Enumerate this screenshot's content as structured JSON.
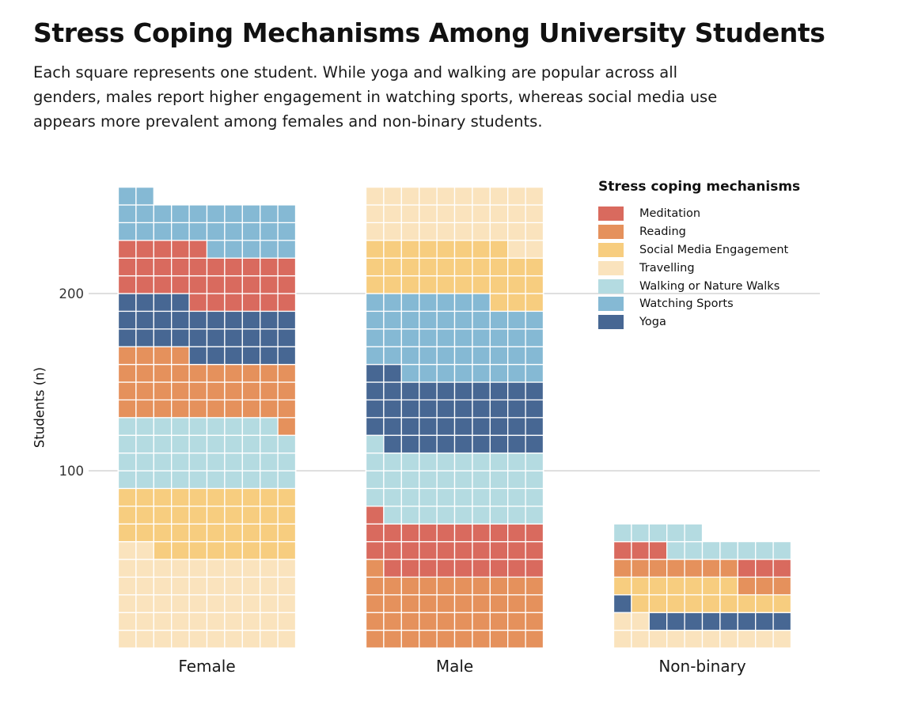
{
  "chart_data": {
    "type": "waffle",
    "title": "Stress Coping Mechanisms Among University Students",
    "subtitle": "Each square represents one student. While yoga and walking are popular across all genders, males report higher engagement in watching sports, whereas social media use appears more prevalent among females and non-binary students.",
    "ylabel": "Students (n)",
    "y_ticks": [
      100,
      200
    ],
    "ylim": [
      0,
      270
    ],
    "squares_per_row": 10,
    "grid": "horizontal-major",
    "legend": {
      "title": "Stress coping mechanisms",
      "position": "top-right"
    },
    "categories": [
      "Female",
      "Male",
      "Non-binary"
    ],
    "series": [
      {
        "name": "Travelling",
        "color": "#fae3bd",
        "values": [
          52,
          32,
          12
        ]
      },
      {
        "name": "Social Media Engagement",
        "color": "#f7cd7f",
        "values": [
          38,
          31,
          16
        ]
      },
      {
        "name": "Walking or Nature Walks",
        "color": "#b4dbe1",
        "values": [
          39,
          40,
          12
        ]
      },
      {
        "name": "Reading",
        "color": "#e5915c",
        "values": [
          35,
          41,
          10
        ]
      },
      {
        "name": "Yoga",
        "color": "#476793",
        "values": [
          30,
          41,
          9
        ]
      },
      {
        "name": "Meditation",
        "color": "#d96a5e",
        "values": [
          31,
          30,
          6
        ]
      },
      {
        "name": "Watching Sports",
        "color": "#85b9d4",
        "values": [
          27,
          45,
          0
        ]
      }
    ],
    "series_order_bottom_to_top": {
      "Female": [
        "Travelling",
        "Social Media Engagement",
        "Walking or Nature Walks",
        "Reading",
        "Yoga",
        "Meditation",
        "Watching Sports"
      ],
      "Male": [
        "Reading",
        "Meditation",
        "Walking or Nature Walks",
        "Yoga",
        "Watching Sports",
        "Social Media Engagement",
        "Travelling"
      ],
      "Non-binary": [
        "Watching Sports",
        "Travelling",
        "Yoga",
        "Social Media Engagement",
        "Reading",
        "Meditation",
        "Walking or Nature Walks"
      ]
    },
    "legend_order": [
      "Meditation",
      "Reading",
      "Social Media Engagement",
      "Travelling",
      "Walking or Nature Walks",
      "Watching Sports",
      "Yoga"
    ]
  }
}
